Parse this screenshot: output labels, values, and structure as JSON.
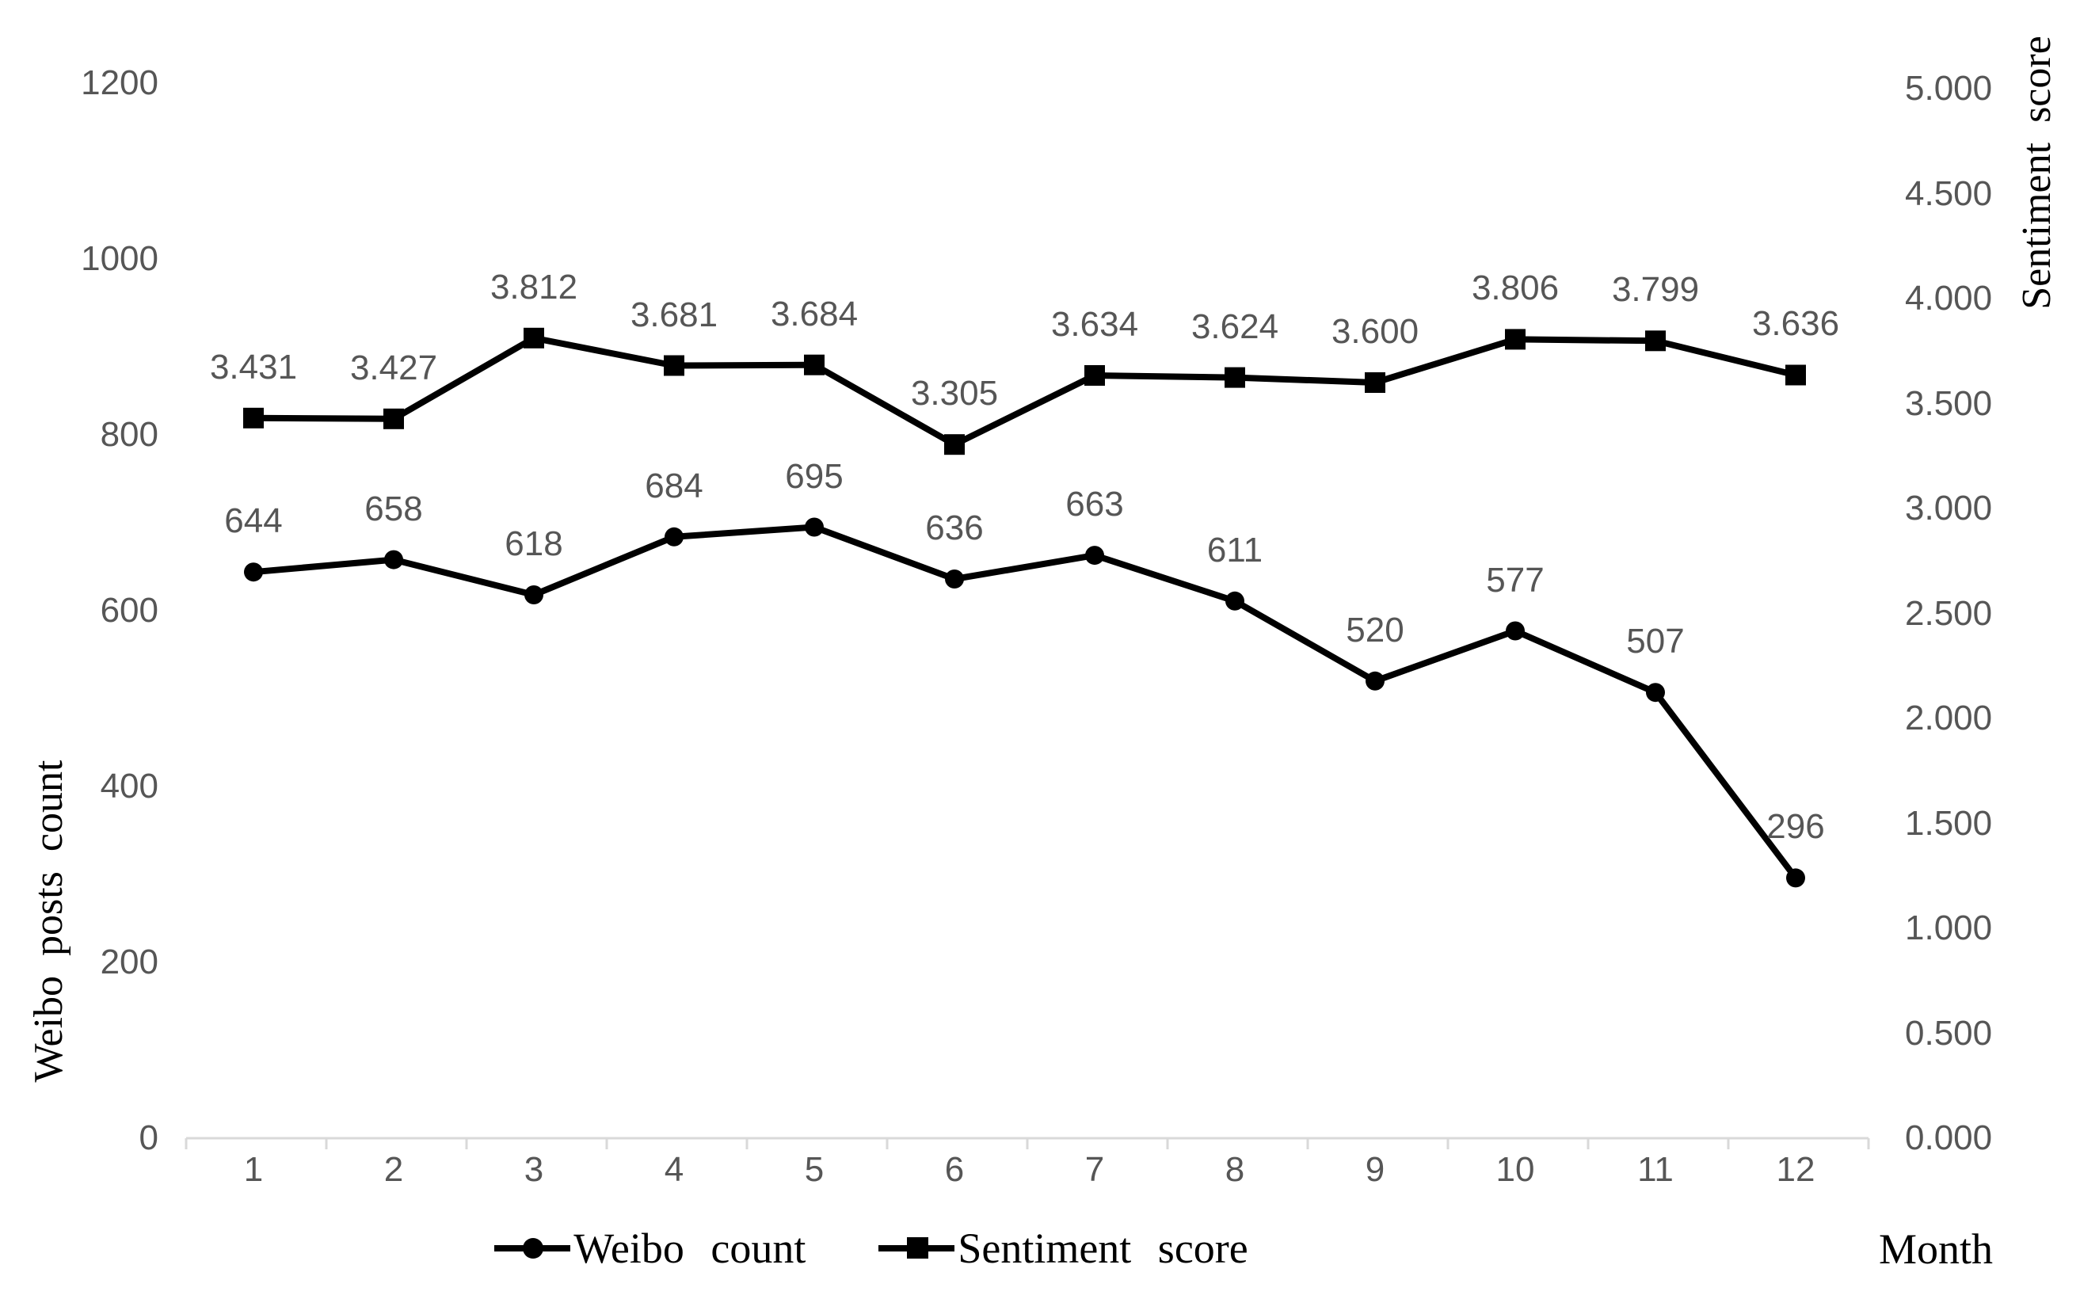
{
  "chart_data": {
    "type": "line",
    "title": "",
    "x": [
      1,
      2,
      3,
      4,
      5,
      6,
      7,
      8,
      9,
      10,
      11,
      12
    ],
    "xlabel": "Month",
    "grid": false,
    "legend_position": "bottom",
    "series": [
      {
        "name": "Weibo count",
        "axis": "left",
        "marker": "circle",
        "color": "#000000",
        "values": [
          644,
          658,
          618,
          684,
          695,
          636,
          663,
          611,
          520,
          577,
          507,
          296
        ],
        "labels": [
          "644",
          "658",
          "618",
          "684",
          "695",
          "636",
          "663",
          "611",
          "520",
          "577",
          "507",
          "296"
        ]
      },
      {
        "name": "Sentiment score",
        "axis": "right",
        "marker": "square",
        "color": "#000000",
        "values": [
          3.431,
          3.427,
          3.812,
          3.681,
          3.684,
          3.305,
          3.634,
          3.624,
          3.6,
          3.806,
          3.799,
          3.636
        ],
        "labels": [
          "3.431",
          "3.427",
          "3.812",
          "3.681",
          "3.684",
          "3.305",
          "3.634",
          "3.624",
          "3.600",
          "3.806",
          "3.799",
          "3.636"
        ]
      }
    ],
    "left_axis": {
      "title": "Weibo posts count",
      "min": 0,
      "max": 1200,
      "step": 200,
      "tick_labels": [
        "0",
        "200",
        "400",
        "600",
        "800",
        "1000",
        "1200"
      ]
    },
    "right_axis": {
      "title": "Sentiment  score",
      "min": 0,
      "max": 5,
      "step": 0.5,
      "tick_labels": [
        "0.000",
        "0.500",
        "1.000",
        "1.500",
        "2.000",
        "2.500",
        "3.000",
        "3.500",
        "4.000",
        "4.500",
        "5.000"
      ]
    },
    "legend": [
      {
        "label": "Weibo  count",
        "marker": "circle"
      },
      {
        "label": "Sentiment  score",
        "marker": "square"
      }
    ],
    "colors": {
      "series": "#000000",
      "tick_labels": "#565656",
      "data_labels": "#565656",
      "axis_line": "#d9d9d9"
    }
  }
}
